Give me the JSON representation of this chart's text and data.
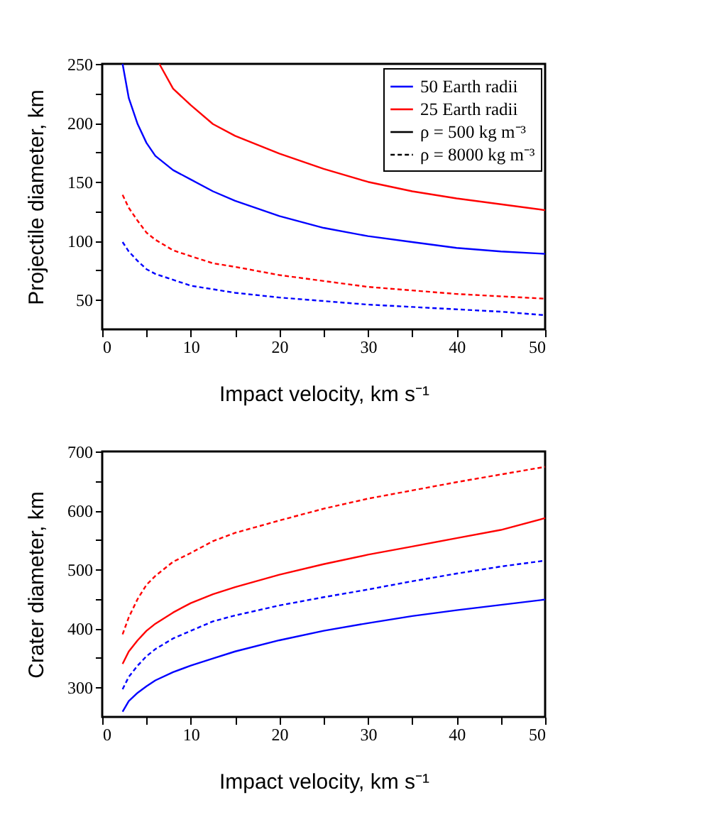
{
  "chart_data": [
    {
      "type": "line",
      "xlabel": "Impact velocity, km s⁻¹",
      "ylabel": "Projectile diameter, km",
      "xlim": [
        0,
        50
      ],
      "ylim": [
        25,
        250
      ],
      "xticks": [
        0,
        {
          "value": 5,
          "label": null
        },
        10,
        {
          "value": 15,
          "label": null
        },
        20,
        {
          "value": 25,
          "label": null
        },
        30,
        {
          "value": 35,
          "label": null
        },
        40,
        {
          "value": 45,
          "label": null
        },
        50
      ],
      "yticks": [
        50,
        {
          "value": 75,
          "label": null
        },
        100,
        {
          "value": 125,
          "label": null
        },
        150,
        {
          "value": 175,
          "label": null
        },
        200,
        {
          "value": 225,
          "label": null
        },
        250
      ],
      "grid": false,
      "legend": "top right",
      "x": [
        2.3,
        3,
        4,
        5,
        6,
        8,
        10,
        12.5,
        15,
        20,
        25,
        30,
        35,
        40,
        45,
        50
      ],
      "series": [
        {
          "name": "50 Earth radii",
          "color": "#0000ff",
          "line_style": "solid",
          "values": [
            250,
            221,
            199,
            183,
            172,
            160,
            152,
            142,
            134,
            121,
            111,
            104,
            99,
            94,
            91,
            89
          ]
        },
        {
          "name": "25 Earth radii",
          "color": "#ff0000",
          "line_style": "solid",
          "x": [
            6.45,
            8,
            10,
            12.5,
            15,
            20,
            25,
            30,
            35,
            40,
            45,
            50
          ],
          "values": [
            250,
            229,
            215,
            199,
            189,
            174,
            161,
            150,
            142,
            136,
            131,
            126
          ]
        },
        {
          "color": "#0000ff",
          "line_style": "dashed",
          "values": [
            99,
            91,
            83,
            76,
            72,
            67,
            62,
            59,
            56,
            52,
            49,
            46,
            44,
            42,
            40,
            37
          ]
        },
        {
          "color": "#ff0000",
          "line_style": "dashed",
          "values": [
            139,
            128,
            117,
            107,
            101,
            92,
            87,
            81,
            78,
            71,
            66,
            61,
            58,
            55,
            53,
            51
          ]
        },
        {
          "name": "ρ = 500 kg m⁻³",
          "color": "#000000",
          "line_style": "solid",
          "values": [
            null,
            null,
            null,
            null,
            null,
            null,
            null,
            null,
            null,
            null,
            null,
            null,
            null,
            null,
            null,
            null
          ]
        },
        {
          "name": "ρ = 8000 kg m⁻³",
          "color": "#000000",
          "line_style": "dashed",
          "values": [
            null,
            null,
            null,
            null,
            null,
            null,
            null,
            null,
            null,
            null,
            null,
            null,
            null,
            null,
            null,
            null
          ]
        }
      ]
    },
    {
      "type": "line",
      "xlabel": "Impact velocity, km s⁻¹",
      "ylabel": "Crater diameter, km",
      "xlim": [
        0,
        50
      ],
      "ylim": [
        250,
        700
      ],
      "xticks": [
        0,
        {
          "value": 5,
          "label": null
        },
        10,
        {
          "value": 15,
          "label": null
        },
        20,
        {
          "value": 25,
          "label": null
        },
        30,
        {
          "value": 35,
          "label": null
        },
        40,
        {
          "value": 45,
          "label": null
        },
        50
      ],
      "yticks": [
        300,
        {
          "value": 350,
          "label": null
        },
        400,
        {
          "value": 450,
          "label": null
        },
        500,
        {
          "value": 550,
          "label": null
        },
        600,
        {
          "value": 650,
          "label": null
        },
        700
      ],
      "grid": false,
      "x": [
        2.3,
        3,
        4,
        5,
        6,
        8,
        10,
        12.5,
        15,
        20,
        25,
        30,
        35,
        40,
        45,
        50
      ],
      "series": [
        {
          "color": "#0000ff",
          "line_style": "solid",
          "values": [
            259,
            277,
            291,
            302,
            312,
            326,
            337,
            349,
            361,
            380,
            396,
            409,
            421,
            431,
            440,
            449
          ]
        },
        {
          "color": "#ff0000",
          "line_style": "solid",
          "values": [
            340,
            361,
            380,
            396,
            408,
            427,
            443,
            458,
            470,
            491,
            509,
            525,
            539,
            553,
            567,
            587
          ]
        },
        {
          "color": "#0000ff",
          "line_style": "dashed",
          "values": [
            297,
            318,
            337,
            353,
            365,
            383,
            396,
            412,
            422,
            439,
            453,
            466,
            480,
            493,
            505,
            515
          ]
        },
        {
          "color": "#ff0000",
          "line_style": "dashed",
          "values": [
            390,
            419,
            450,
            474,
            489,
            513,
            528,
            548,
            562,
            583,
            603,
            620,
            634,
            648,
            661,
            674
          ]
        }
      ]
    }
  ]
}
